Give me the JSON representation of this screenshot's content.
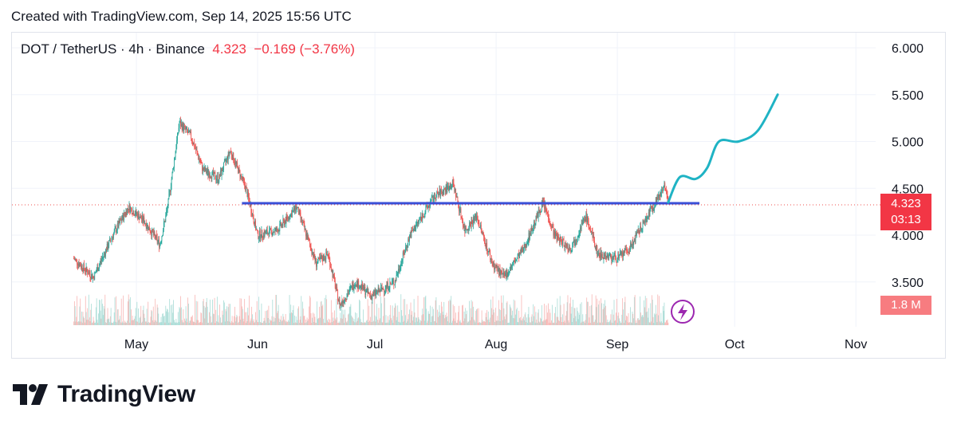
{
  "header": {
    "created_text": "Created with TradingView.com, Sep 14, 2025 15:56 UTC"
  },
  "legend": {
    "symbol": "DOT / TetherUS · 4h · Binance",
    "last": "4.323",
    "change": "−0.169 (−3.76%)"
  },
  "price_tag": {
    "price": "4.323",
    "countdown": "03:13"
  },
  "volume_tag": {
    "value": "1.8 M"
  },
  "brand": {
    "name": "TradingView"
  },
  "colors": {
    "up": "#26a69a",
    "down": "#ef5350",
    "support": "#3a4fd6",
    "projection": "#1fb3c4",
    "tag": "#f23645"
  },
  "chart_data": {
    "type": "candlestick",
    "timeframe": "4h",
    "x_ticks": [
      "May",
      "Jun",
      "Jul",
      "Aug",
      "Sep",
      "Oct",
      "Nov"
    ],
    "y_ticks": [
      "6.000",
      "5.500",
      "5.000",
      "4.500",
      "4.000",
      "3.500"
    ],
    "ylim": [
      3.1,
      6.2
    ],
    "last_price": 4.323,
    "price_path": [
      [
        "2025-04-15",
        3.75
      ],
      [
        "2025-04-20",
        3.55
      ],
      [
        "2025-04-25",
        4.0
      ],
      [
        "2025-04-29",
        4.3
      ],
      [
        "2025-05-03",
        4.15
      ],
      [
        "2025-05-07",
        3.9
      ],
      [
        "2025-05-09",
        4.3
      ],
      [
        "2025-05-12",
        5.2
      ],
      [
        "2025-05-15",
        5.05
      ],
      [
        "2025-05-18",
        4.7
      ],
      [
        "2025-05-22",
        4.6
      ],
      [
        "2025-05-25",
        4.9
      ],
      [
        "2025-05-29",
        4.5
      ],
      [
        "2025-06-01",
        4.0
      ],
      [
        "2025-06-06",
        4.05
      ],
      [
        "2025-06-11",
        4.3
      ],
      [
        "2025-06-16",
        3.7
      ],
      [
        "2025-06-19",
        3.8
      ],
      [
        "2025-06-22",
        3.25
      ],
      [
        "2025-06-26",
        3.5
      ],
      [
        "2025-06-30",
        3.35
      ],
      [
        "2025-07-06",
        3.5
      ],
      [
        "2025-07-10",
        4.0
      ],
      [
        "2025-07-16",
        4.4
      ],
      [
        "2025-07-21",
        4.55
      ],
      [
        "2025-07-24",
        4.05
      ],
      [
        "2025-07-27",
        4.2
      ],
      [
        "2025-07-31",
        3.7
      ],
      [
        "2025-08-03",
        3.55
      ],
      [
        "2025-08-08",
        3.85
      ],
      [
        "2025-08-13",
        4.35
      ],
      [
        "2025-08-16",
        4.0
      ],
      [
        "2025-08-20",
        3.85
      ],
      [
        "2025-08-24",
        4.2
      ],
      [
        "2025-08-27",
        3.8
      ],
      [
        "2025-09-01",
        3.75
      ],
      [
        "2025-09-04",
        3.85
      ],
      [
        "2025-09-08",
        4.15
      ],
      [
        "2025-09-12",
        4.45
      ],
      [
        "2025-09-13",
        4.55
      ],
      [
        "2025-09-14",
        4.32
      ]
    ],
    "support_line": {
      "price": 4.34,
      "from": "2025-05-28",
      "to": "2025-09-22"
    },
    "projection": [
      [
        "2025-09-14",
        4.35
      ],
      [
        "2025-09-17",
        4.62
      ],
      [
        "2025-09-21",
        4.6
      ],
      [
        "2025-09-24",
        4.72
      ],
      [
        "2025-09-27",
        5.0
      ],
      [
        "2025-10-02",
        5.0
      ],
      [
        "2025-10-07",
        5.12
      ],
      [
        "2025-10-12",
        5.5
      ]
    ]
  }
}
